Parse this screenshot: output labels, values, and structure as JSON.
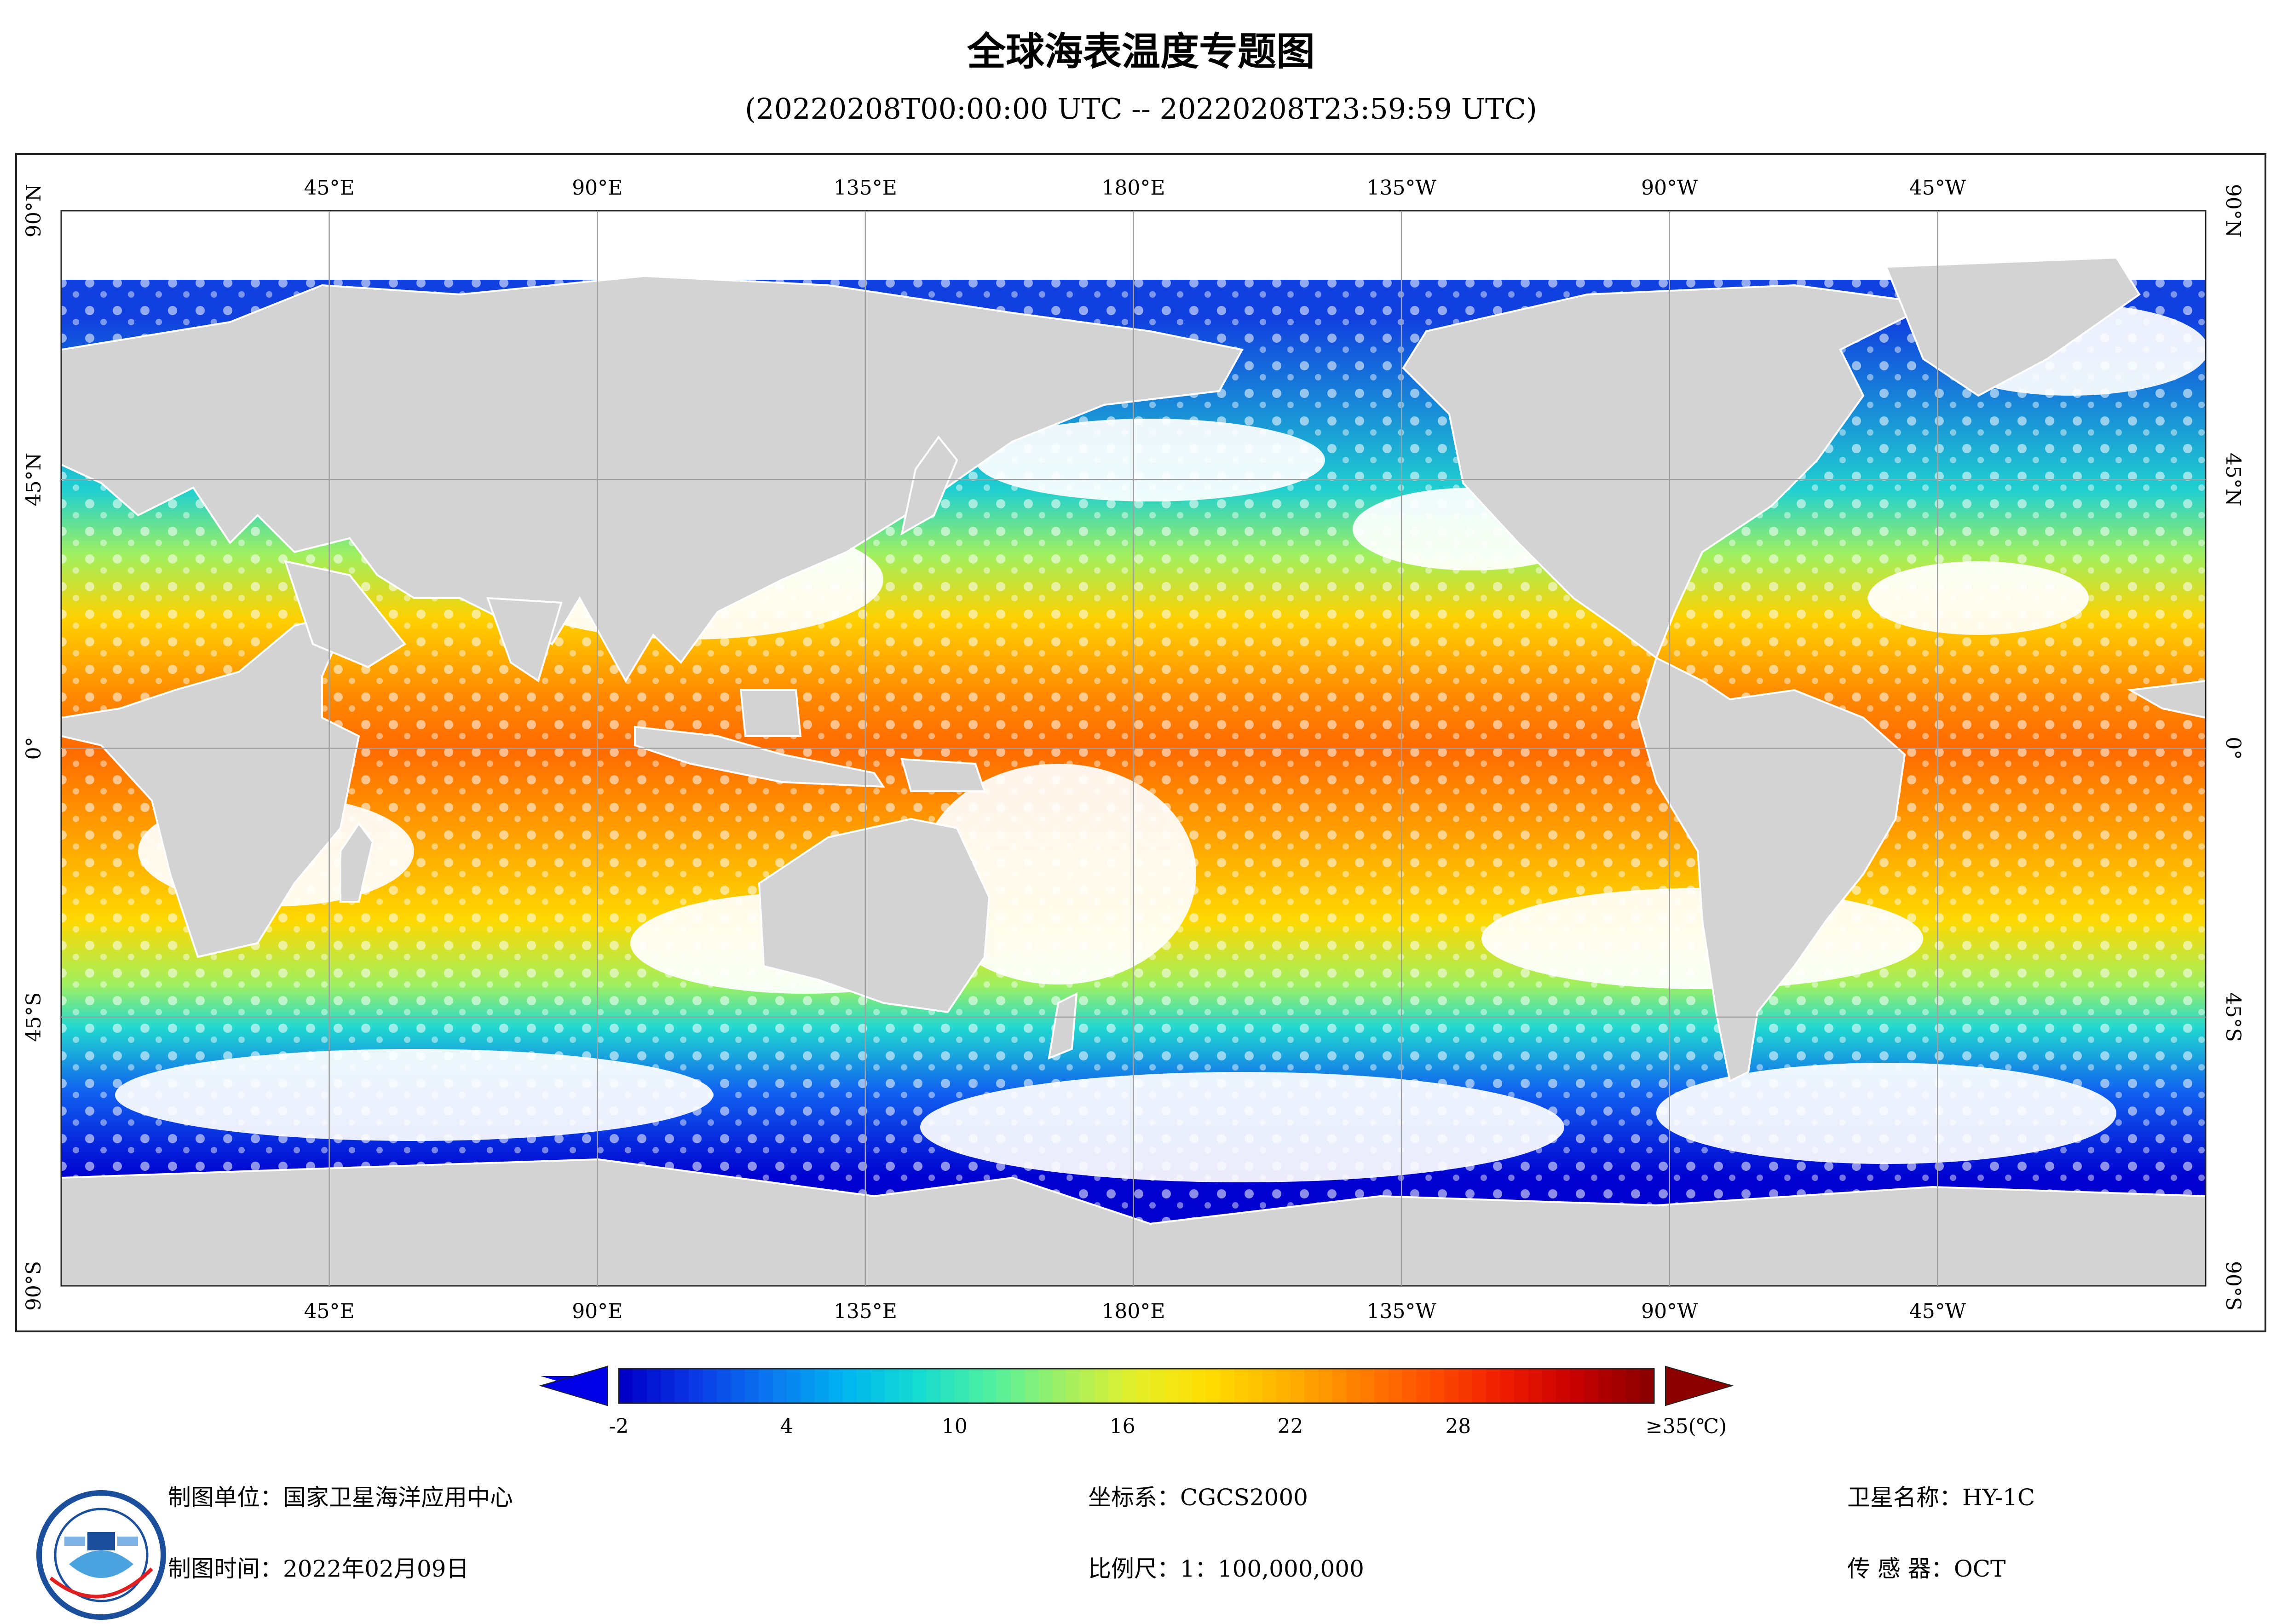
{
  "title": "全球海表温度专题图",
  "subtitle": "(20220208T00:00:00 UTC -- 20220208T23:59:59 UTC)",
  "map": {
    "projection": "plate-carree",
    "lon_labels": [
      "45°E",
      "90°E",
      "135°E",
      "180°E",
      "135°W",
      "90°W",
      "45°W"
    ],
    "lat_labels": [
      "90°N",
      "45°N",
      "0°",
      "45°S",
      "90°S"
    ],
    "colors": {
      "land": "#d3d3d3",
      "cloud": "#ffffff",
      "grid": "#a0a0a0"
    }
  },
  "colorbar": {
    "tick_labels": [
      "-2",
      "4",
      "10",
      "16",
      "22",
      "28",
      "≥35(℃)"
    ],
    "min": -2,
    "max": 35,
    "unit": "℃",
    "colors": [
      "#0000c8",
      "#0a3ce6",
      "#0a78f0",
      "#00b4f0",
      "#14dcd2",
      "#50f0a0",
      "#a0f064",
      "#e6f028",
      "#ffdc00",
      "#ffb400",
      "#ff8200",
      "#ff5000",
      "#f01e00",
      "#c80000",
      "#8c0000"
    ]
  },
  "footer": {
    "producer": "制图单位：国家卫星海洋应用中心",
    "date": "制图时间：2022年02月09日",
    "crs": "坐标系：CGCS2000",
    "scale": "比例尺：1：100,000,000",
    "satellite": "卫星名称：HY-1C",
    "sensor": "传 感 器：OCT"
  }
}
